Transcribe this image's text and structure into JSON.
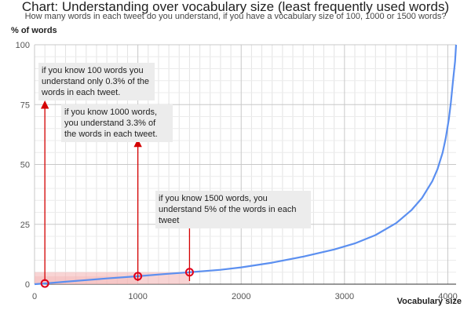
{
  "chart_data": {
    "type": "line",
    "title": "Chart: Understanding over vocabulary size (least frequently used words)",
    "subtitle": "How many words in each tweet do you understand, if you have a vocabulary size of 100, 1000 or 1500 words?",
    "xlabel": "Vocabulary size",
    "ylabel": "% of words",
    "xlim": [
      0,
      4080
    ],
    "ylim": [
      0,
      100
    ],
    "x_ticks": [
      0,
      1000,
      2000,
      3000,
      4000
    ],
    "y_ticks": [
      0,
      25,
      50,
      75,
      100
    ],
    "grid": true,
    "series": [
      {
        "name": "Understanding",
        "color": "#5b8ff0",
        "x": [
          0,
          100,
          300,
          500,
          700,
          1000,
          1250,
          1500,
          1800,
          2000,
          2300,
          2600,
          2900,
          3100,
          3300,
          3500,
          3650,
          3750,
          3850,
          3900,
          3950,
          3980,
          4010,
          4030,
          4050,
          4070,
          4080
        ],
        "y": [
          0,
          0.3,
          1.0,
          1.7,
          2.4,
          3.3,
          4.2,
          5.0,
          6.0,
          7.0,
          9.0,
          11.5,
          14.5,
          17.0,
          20.5,
          25.5,
          31,
          36,
          43,
          48,
          55,
          61,
          69,
          76,
          85,
          93,
          100
        ]
      }
    ],
    "highlights": [
      {
        "x": 100,
        "y": 0.3
      },
      {
        "x": 1000,
        "y": 3.3
      },
      {
        "x": 1500,
        "y": 5.0
      }
    ],
    "annotations": [
      {
        "text": "if you know 100 words you understand only 0.3% of the words in each tweet.",
        "x": 100,
        "arrow_to": 75
      },
      {
        "text": "if you know 1000 words, you understand 3.3% of the words in each tweet.",
        "x": 1000,
        "arrow_to": 59
      },
      {
        "text": "if you know 1500 words, you understand 5% of the words in each tweet",
        "x": 1500,
        "arrow_to": 29
      }
    ],
    "shade_color": "#f4b6b6",
    "highlight_color": "#e0001b",
    "arrow_color": "#d40000"
  }
}
